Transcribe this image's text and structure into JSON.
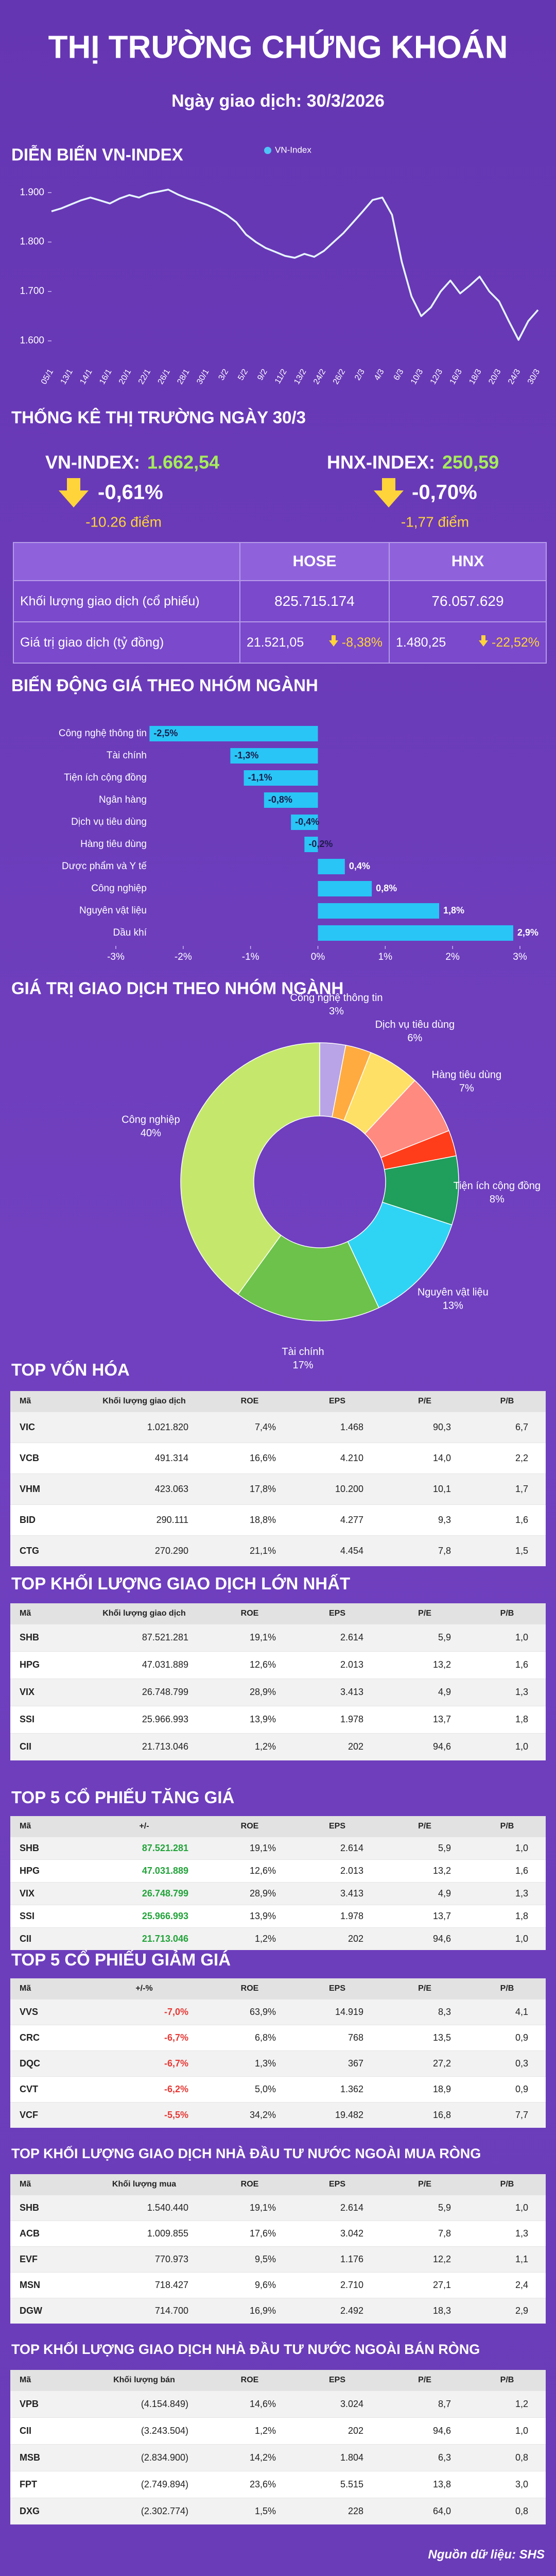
{
  "header": {
    "title": "THỊ TRƯỜNG CHỨNG KHOÁN",
    "subtitle": "Ngày giao dịch: 30/3/2026"
  },
  "chart_data": [
    {
      "type": "line",
      "title": "DIỄN BIẾN VN-INDEX",
      "categories": [
        "05/1",
        null,
        "13/1",
        null,
        "14/1",
        null,
        "16/1",
        null,
        "20/1",
        null,
        "22/1",
        null,
        "26/1",
        null,
        "28/1",
        null,
        "30/1",
        null,
        "3/2",
        null,
        "5/2",
        null,
        "9/2",
        null,
        "11/2",
        null,
        "13/2",
        null,
        "24/2",
        null,
        "26/2",
        null,
        "2/3",
        null,
        "4/3",
        null,
        "6/3",
        null,
        "10/3",
        null,
        "12/3",
        null,
        "16/3",
        null,
        "18/3",
        null,
        "20/3",
        null,
        "24/3",
        null,
        "30/3"
      ],
      "series": [
        {
          "name": "VN-Index",
          "color": "#e6f6ff",
          "values": [
            1862,
            1868,
            1876,
            1884,
            1890,
            1884,
            1878,
            1888,
            1895,
            1890,
            1898,
            1902,
            1906,
            1896,
            1888,
            1882,
            1875,
            1866,
            1855,
            1840,
            1815,
            1800,
            1788,
            1780,
            1772,
            1768,
            1776,
            1770,
            1782,
            1800,
            1818,
            1840,
            1862,
            1885,
            1890,
            1855,
            1760,
            1690,
            1650,
            1668,
            1700,
            1722,
            1696,
            1712,
            1730,
            1700,
            1680,
            1640,
            1602,
            1640,
            1662.54
          ]
        }
      ],
      "legend_color": "#4fc3f7",
      "legend": "top",
      "ylim": [
        1560,
        1930
      ],
      "yticks": [
        {
          "value": 1600,
          "label": "1.600"
        },
        {
          "value": 1700,
          "label": "1.700"
        },
        {
          "value": 1800,
          "label": "1.800"
        },
        {
          "value": 1900,
          "label": "1.900"
        }
      ]
    },
    {
      "type": "barh",
      "title": "BIẾN ĐỘNG GIÁ THEO NHÓM NGÀNH",
      "categories": [
        "Công nghệ thông tin",
        "Tài chính",
        "Tiện ích cộng đồng",
        "Ngân hàng",
        "Dịch vụ tiêu dùng",
        "Hàng tiêu dùng",
        "Dược phẩm và Y tế",
        "Công nghiệp",
        "Nguyên vật liệu",
        "Dầu khí"
      ],
      "values": [
        -2.5,
        -1.3,
        -1.1,
        -0.8,
        -0.4,
        -0.2,
        0.4,
        0.8,
        1.8,
        2.9
      ],
      "value_labels": [
        "-2,5%",
        "-1,3%",
        "-1,1%",
        "-0,8%",
        "-0,4%",
        "-0,2%",
        "0,4%",
        "0,8%",
        "1,8%",
        "2,9%"
      ],
      "color": "#29c5f6",
      "xlim": [
        -3,
        3
      ],
      "xticks": [
        {
          "value": -3,
          "label": "-3%"
        },
        {
          "value": -2,
          "label": "-2%"
        },
        {
          "value": -1,
          "label": "-1%"
        },
        {
          "value": 0,
          "label": "0%"
        },
        {
          "value": 1,
          "label": "1%"
        },
        {
          "value": 2,
          "label": "2%"
        },
        {
          "value": 3,
          "label": "3%"
        }
      ]
    },
    {
      "type": "donut",
      "title": "GIÁ TRỊ GIAO DỊCH THEO NHÓM NGÀNH",
      "categories": [
        "Công nghệ thông tin",
        null,
        "Dịch vụ tiêu dùng",
        "Hàng tiêu dùng",
        null,
        "Tiện ích cộng đồng",
        "Nguyên vật liệu",
        "Tài chính",
        "Công nghiệp"
      ],
      "values": [
        3,
        3,
        6,
        7,
        3,
        8,
        13,
        17,
        40
      ],
      "value_labels": [
        "3%",
        null,
        "6%",
        "7%",
        null,
        "8%",
        "13%",
        "17%",
        "40%"
      ],
      "colors": [
        "#b8a4e6",
        "#ffab40",
        "#ffe066",
        "#ff8a80",
        "#ff3d1a",
        "#1f9e5c",
        "#2fd4f5",
        "#6cc24a",
        "#c5e86c"
      ]
    }
  ],
  "market_stats": {
    "title": "THỐNG KÊ THỊ TRƯỜNG NGÀY 30/3",
    "indices": [
      {
        "label": "VN-INDEX:",
        "value": "1.662,54",
        "change_pct": "-0,61%",
        "change_pts": "-10.26 điểm"
      },
      {
        "label": "HNX-INDEX:",
        "value": "250,59",
        "change_pct": "-0,70%",
        "change_pts": "-1,77 điểm"
      }
    ],
    "table": {
      "columns": [
        "HOSE",
        "HNX"
      ],
      "rows": [
        [
          "Khối lượng giao dịch (cổ phiếu)",
          "825.715.174",
          "76.057.629"
        ],
        [
          "Giá trị giao dịch (tỷ đồng)",
          "21.521,05",
          "-8,38%",
          "1.480,25",
          "-22,52%"
        ]
      ]
    }
  },
  "tables": [
    {
      "title": "TOP VỐN HÓA",
      "columns": [
        "Mã",
        "Khối lượng giao dịch",
        "ROE",
        "EPS",
        "P/E",
        "P/B"
      ],
      "rows": [
        [
          "VIC",
          "1.021.820",
          "7,4%",
          "1.468",
          "90,3",
          "6,7"
        ],
        [
          "VCB",
          "491.314",
          "16,6%",
          "4.210",
          "14,0",
          "2,2"
        ],
        [
          "VHM",
          "423.063",
          "17,8%",
          "10.200",
          "10,1",
          "1,7"
        ],
        [
          "BID",
          "290.111",
          "18,8%",
          "4.277",
          "9,3",
          "1,6"
        ],
        [
          "CTG",
          "270.290",
          "21,1%",
          "4.454",
          "7,8",
          "1,5"
        ]
      ]
    },
    {
      "title": "TOP KHỐI LƯỢNG GIAO DỊCH LỚN NHẤT",
      "columns": [
        "Mã",
        "Khối lượng giao dịch",
        "ROE",
        "EPS",
        "P/E",
        "P/B"
      ],
      "rows": [
        [
          "SHB",
          "87.521.281",
          "19,1%",
          "2.614",
          "5,9",
          "1,0"
        ],
        [
          "HPG",
          "47.031.889",
          "12,6%",
          "2.013",
          "13,2",
          "1,6"
        ],
        [
          "VIX",
          "26.748.799",
          "28,9%",
          "3.413",
          "4,9",
          "1,3"
        ],
        [
          "SSI",
          "25.966.993",
          "13,9%",
          "1.978",
          "13,7",
          "1,8"
        ],
        [
          "CII",
          "21.713.046",
          "1,2%",
          "202",
          "94,6",
          "1,0"
        ]
      ]
    },
    {
      "title": "TOP 5 CỔ PHIẾU TĂNG GIÁ",
      "columns": [
        "Mã",
        "+/-",
        "ROE",
        "EPS",
        "P/E",
        "P/B"
      ],
      "highlight_color": "#22a33a",
      "rows": [
        [
          "SHB",
          "87.521.281",
          "19,1%",
          "2.614",
          "5,9",
          "1,0"
        ],
        [
          "HPG",
          "47.031.889",
          "12,6%",
          "2.013",
          "13,2",
          "1,6"
        ],
        [
          "VIX",
          "26.748.799",
          "28,9%",
          "3.413",
          "4,9",
          "1,3"
        ],
        [
          "SSI",
          "25.966.993",
          "13,9%",
          "1.978",
          "13,7",
          "1,8"
        ],
        [
          "CII",
          "21.713.046",
          "1,2%",
          "202",
          "94,6",
          "1,0"
        ]
      ]
    },
    {
      "title": "TOP 5 CỔ PHIẾU GIẢM GIÁ",
      "columns": [
        "Mã",
        "+/-%",
        "ROE",
        "EPS",
        "P/E",
        "P/B"
      ],
      "highlight_color": "#e53935",
      "rows": [
        [
          "VVS",
          "-7,0%",
          "63,9%",
          "14.919",
          "8,3",
          "4,1"
        ],
        [
          "CRC",
          "-6,7%",
          "6,8%",
          "768",
          "13,5",
          "0,9"
        ],
        [
          "DQC",
          "-6,7%",
          "1,3%",
          "367",
          "27,2",
          "0,3"
        ],
        [
          "CVT",
          "-6,2%",
          "5,0%",
          "1.362",
          "18,9",
          "0,9"
        ],
        [
          "VCF",
          "-5,5%",
          "34,2%",
          "19.482",
          "16,8",
          "7,7"
        ]
      ]
    },
    {
      "title": "TOP KHỐI LƯỢNG GIAO DỊCH NHÀ ĐẦU TƯ NƯỚC NGOÀI MUA RÒNG",
      "columns": [
        "Mã",
        "Khối lượng mua",
        "ROE",
        "EPS",
        "P/E",
        "P/B"
      ],
      "rows": [
        [
          "SHB",
          "1.540.440",
          "19,1%",
          "2.614",
          "5,9",
          "1,0"
        ],
        [
          "ACB",
          "1.009.855",
          "17,6%",
          "3.042",
          "7,8",
          "1,3"
        ],
        [
          "EVF",
          "770.973",
          "9,5%",
          "1.176",
          "12,2",
          "1,1"
        ],
        [
          "MSN",
          "718.427",
          "9,6%",
          "2.710",
          "27,1",
          "2,4"
        ],
        [
          "DGW",
          "714.700",
          "16,9%",
          "2.492",
          "18,3",
          "2,9"
        ]
      ]
    },
    {
      "title": "TOP KHỐI LƯỢNG GIAO DỊCH NHÀ ĐẦU TƯ NƯỚC NGOÀI BÁN RÒNG",
      "columns": [
        "Mã",
        "Khối lượng bán",
        "ROE",
        "EPS",
        "P/E",
        "P/B"
      ],
      "rows": [
        [
          "VPB",
          "(4.154.849)",
          "14,6%",
          "3.024",
          "8,7",
          "1,2"
        ],
        [
          "CII",
          "(3.243.504)",
          "1,2%",
          "202",
          "94,6",
          "1,0"
        ],
        [
          "MSB",
          "(2.834.900)",
          "14,2%",
          "1.804",
          "6,3",
          "0,8"
        ],
        [
          "FPT",
          "(2.749.894)",
          "23,6%",
          "5.515",
          "13,8",
          "3,0"
        ],
        [
          "DXG",
          "(2.302.774)",
          "1,5%",
          "228",
          "64,0",
          "0,8"
        ]
      ]
    }
  ],
  "source": "Nguồn dữ liệu: SHS"
}
